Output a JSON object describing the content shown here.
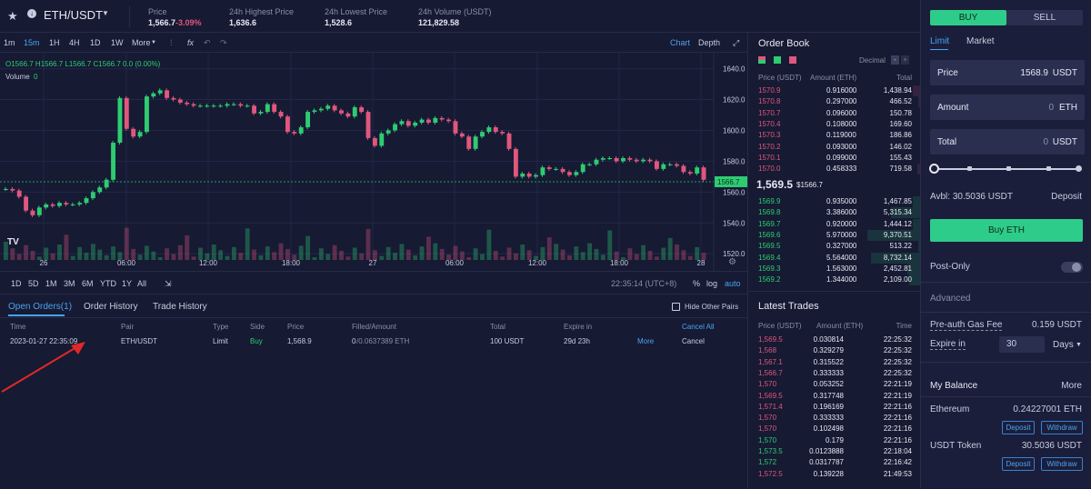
{
  "header": {
    "pair": "ETH/USDT",
    "stats": [
      {
        "label": "Price",
        "value": "1,566.7",
        "change": "-3.09%"
      },
      {
        "label": "24h Highest Price",
        "value": "1,636.6"
      },
      {
        "label": "24h Lowest Price",
        "value": "1,528.6"
      },
      {
        "label": "24h Volume (USDT)",
        "value": "121,829.58"
      }
    ]
  },
  "toolbar": {
    "intervals": [
      "1m",
      "15m",
      "1H",
      "4H",
      "1D",
      "1W",
      "More"
    ],
    "views": [
      "Chart",
      "Depth"
    ]
  },
  "chart": {
    "ohlc": "O1566.7  H1566.7  L1566.7  C1566.7  0.0 (0.00%)",
    "volume_label": "Volume",
    "volume_value": "0",
    "y_ticks": [
      "1640.0",
      "1620.0",
      "1600.0",
      "1580.0",
      "1560.0",
      "1540.0",
      "1520.0"
    ],
    "current_price": "1566.7",
    "x_ticks": [
      "26",
      "06:00",
      "12:00",
      "18:00",
      "27",
      "06:00",
      "12:00",
      "18:00",
      "28"
    ]
  },
  "rangebar": {
    "ranges": [
      "1D",
      "5D",
      "1M",
      "3M",
      "6M",
      "YTD",
      "1Y",
      "All"
    ],
    "time": "22:35:14 (UTC+8)",
    "options": [
      "%",
      "log",
      "auto"
    ]
  },
  "orders": {
    "tabs": [
      "Open Orders(1)",
      "Order History",
      "Trade History"
    ],
    "hide_label": "Hide Other Pairs",
    "columns": [
      "Time",
      "Pair",
      "Type",
      "Side",
      "Price",
      "Filled/Amount",
      "Total",
      "Expire in"
    ],
    "cancel_all": "Cancel All",
    "row": {
      "time": "2023-01-27 22:35:09",
      "pair": "ETH/USDT",
      "type": "Limit",
      "side": "Buy",
      "price": "1,568.9",
      "filled": "0",
      "amount": "/0.0637389 ETH",
      "total": "100 USDT",
      "expire": "29d 23h",
      "more": "More",
      "cancel": "Cancel"
    }
  },
  "orderbook": {
    "title": "Order Book",
    "decimal_label": "Decimal",
    "columns": [
      "Price (USDT)",
      "Amount (ETH)",
      "Total"
    ],
    "asks": [
      [
        "1570.9",
        "0.916000",
        "1,438.94"
      ],
      [
        "1570.8",
        "0.297000",
        "466.52"
      ],
      [
        "1570.7",
        "0.096000",
        "150.78"
      ],
      [
        "1570.4",
        "0.108000",
        "169.60"
      ],
      [
        "1570.3",
        "0.119000",
        "186.86"
      ],
      [
        "1570.2",
        "0.093000",
        "146.02"
      ],
      [
        "1570.1",
        "0.099000",
        "155.43"
      ],
      [
        "1570.0",
        "0.458333",
        "719.58"
      ]
    ],
    "mid_price": "1,569.5",
    "mid_sub": "$1566.7",
    "bids": [
      [
        "1569.9",
        "0.935000",
        "1,467.85"
      ],
      [
        "1569.8",
        "3.386000",
        "5,315.34"
      ],
      [
        "1569.7",
        "0.920000",
        "1,444.12"
      ],
      [
        "1569.6",
        "5.970000",
        "9,370.51"
      ],
      [
        "1569.5",
        "0.327000",
        "513.22"
      ],
      [
        "1569.4",
        "5.564000",
        "8,732.14"
      ],
      [
        "1569.3",
        "1.563000",
        "2,452.81"
      ],
      [
        "1569.2",
        "1.344000",
        "2,109.00"
      ]
    ]
  },
  "trades": {
    "title": "Latest Trades",
    "columns": [
      "Price (USDT)",
      "Amount (ETH)",
      "Time"
    ],
    "rows": [
      [
        "1,569.5",
        "0.030814",
        "22:25:32",
        "red"
      ],
      [
        "1,568",
        "0.329279",
        "22:25:32",
        "red"
      ],
      [
        "1,567.1",
        "0.315522",
        "22:25:32",
        "red"
      ],
      [
        "1,566.7",
        "0.333333",
        "22:25:32",
        "red"
      ],
      [
        "1,570",
        "0.053252",
        "22:21:19",
        "red"
      ],
      [
        "1,569.5",
        "0.317748",
        "22:21:19",
        "red"
      ],
      [
        "1,571.4",
        "0.196169",
        "22:21:16",
        "red"
      ],
      [
        "1,570",
        "0.333333",
        "22:21:16",
        "red"
      ],
      [
        "1,570",
        "0.102498",
        "22:21:16",
        "red"
      ],
      [
        "1,570",
        "0.179",
        "22:21:16",
        "green"
      ],
      [
        "1,573.5",
        "0.0123888",
        "22:18:04",
        "green"
      ],
      [
        "1,572",
        "0.0317787",
        "22:16:42",
        "green"
      ],
      [
        "1,572.5",
        "0.139228",
        "21:49:53",
        "red"
      ]
    ]
  },
  "form": {
    "buy_tab": "BUY",
    "sell_tab": "SELL",
    "order_types": [
      "Limit",
      "Market"
    ],
    "price_label": "Price",
    "price_value": "1568.9",
    "price_unit": "USDT",
    "amount_label": "Amount",
    "amount_value": "0",
    "amount_unit": "ETH",
    "total_label": "Total",
    "total_value": "0",
    "total_unit": "USDT",
    "avbl": "Avbl: 30.5036 USDT",
    "deposit": "Deposit",
    "buy_button": "Buy ETH",
    "post_only": "Post-Only",
    "advanced": "Advanced",
    "gas_label": "Pre-auth Gas Fee",
    "gas_value": "0.159 USDT",
    "expire_label": "Expire in",
    "expire_value": "30",
    "expire_unit": "Days",
    "balance_title": "My Balance",
    "balance_more": "More",
    "eth_label": "Ethereum",
    "eth_value": "0.24227001 ETH",
    "usdt_label": "USDT Token",
    "usdt_value": "30.5036 USDT",
    "withdraw": "Withdraw"
  },
  "colors": {
    "up": "#2ecc71",
    "down": "#e0577d",
    "accent": "#4aa3f0",
    "buy": "#2ecc8a",
    "bg": "#161a33"
  }
}
